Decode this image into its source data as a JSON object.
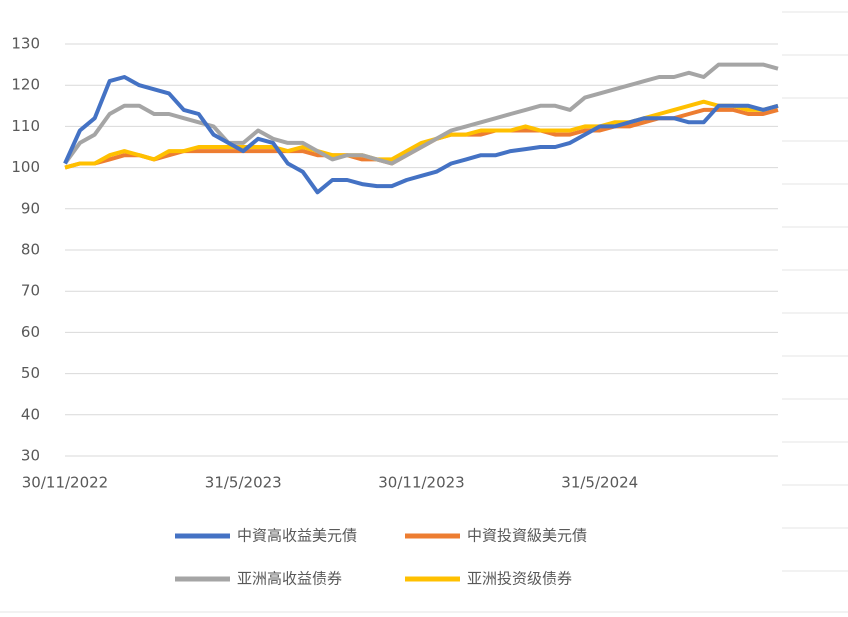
{
  "chart_data": {
    "type": "line",
    "categories": [
      "30/11/2022",
      null,
      null,
      null,
      null,
      null,
      null,
      null,
      null,
      null,
      null,
      null,
      "31/5/2023",
      null,
      null,
      null,
      null,
      null,
      null,
      null,
      null,
      null,
      null,
      null,
      "30/11/2023",
      null,
      null,
      null,
      null,
      null,
      null,
      null,
      null,
      null,
      null,
      null,
      "31/5/2024",
      null,
      null,
      null,
      null,
      null,
      null,
      null,
      null,
      null,
      null,
      null,
      null
    ],
    "series": [
      {
        "name": "中資高收益美元債",
        "color": "#4472c4",
        "values": [
          101,
          109,
          112,
          121,
          122,
          120,
          119,
          118,
          114,
          113,
          108,
          106,
          104,
          107,
          106,
          101,
          99,
          94,
          97,
          97,
          96,
          95.5,
          95.5,
          97,
          98,
          99,
          101,
          102,
          103,
          103,
          104,
          104.5,
          105,
          105,
          106,
          108,
          110,
          110,
          111,
          112,
          112,
          112,
          111,
          111,
          115,
          115,
          115,
          114,
          115
        ]
      },
      {
        "name": "中資投資級美元債",
        "color": "#ed7d31",
        "values": [
          100,
          101,
          101,
          102,
          103,
          103,
          102,
          103,
          104,
          104,
          104,
          104,
          104,
          104,
          104,
          104,
          104,
          103,
          103,
          103,
          102,
          102,
          101,
          103,
          105,
          107,
          108,
          108,
          108,
          109,
          109,
          109,
          109,
          108,
          108,
          109,
          109,
          110,
          110,
          111,
          112,
          112,
          113,
          114,
          114,
          114,
          113,
          113,
          114
        ]
      },
      {
        "name": "亚洲高收益债券",
        "color": "#a5a5a5",
        "values": [
          101,
          106,
          108,
          113,
          115,
          115,
          113,
          113,
          112,
          111,
          110,
          106,
          106,
          109,
          107,
          106,
          106,
          104,
          102,
          103,
          103,
          102,
          101,
          103,
          105,
          107,
          109,
          110,
          111,
          112,
          113,
          114,
          115,
          115,
          114,
          117,
          118,
          119,
          120,
          121,
          122,
          122,
          123,
          122,
          125,
          125,
          125,
          125,
          124
        ]
      },
      {
        "name": "亚洲投资级债券",
        "color": "#ffc000",
        "values": [
          100,
          101,
          101,
          103,
          104,
          103,
          102,
          104,
          104,
          105,
          105,
          105,
          105,
          105,
          105,
          104,
          105,
          104,
          103,
          103,
          103,
          102,
          102,
          104,
          106,
          107,
          108,
          108,
          109,
          109,
          109,
          110,
          109,
          109,
          109,
          110,
          110,
          111,
          111,
          112,
          113,
          114,
          115,
          116,
          115,
          115,
          114,
          114,
          115
        ]
      }
    ],
    "ylim": [
      30,
      130
    ],
    "yticks": [
      30,
      40,
      50,
      60,
      70,
      80,
      90,
      100,
      110,
      120,
      130
    ],
    "grid": true
  }
}
